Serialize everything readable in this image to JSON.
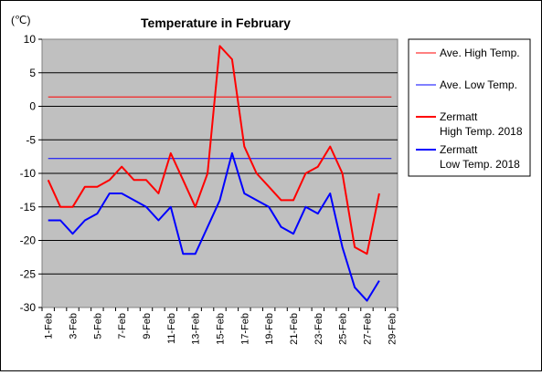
{
  "chart_data": {
    "type": "line",
    "title": "Temperature in February",
    "ylabel": "(℃)",
    "xlabel": "",
    "ylim": [
      -30,
      10
    ],
    "yticks": [
      "10",
      "5",
      "0",
      "-5",
      "-10",
      "-15",
      "-20",
      "-25",
      "-30"
    ],
    "categories": [
      "1-Feb",
      "2-Feb",
      "3-Feb",
      "4-Feb",
      "5-Feb",
      "6-Feb",
      "7-Feb",
      "8-Feb",
      "9-Feb",
      "10-Feb",
      "11-Feb",
      "12-Feb",
      "13-Feb",
      "14-Feb",
      "15-Feb",
      "16-Feb",
      "17-Feb",
      "18-Feb",
      "19-Feb",
      "20-Feb",
      "21-Feb",
      "22-Feb",
      "23-Feb",
      "24-Feb",
      "25-Feb",
      "26-Feb",
      "27-Feb",
      "28-Feb",
      "29-Feb"
    ],
    "xtick_labels": [
      "1-Feb",
      "3-Feb",
      "5-Feb",
      "7-Feb",
      "9-Feb",
      "11-Feb",
      "13-Feb",
      "15-Feb",
      "17-Feb",
      "19-Feb",
      "21-Feb",
      "23-Feb",
      "25-Feb",
      "27-Feb",
      "29-Feb"
    ],
    "grid": true,
    "background": "#c0c0c0",
    "legend_position": "right",
    "series": [
      {
        "name": "Ave. High Temp.",
        "color": "#ff0000",
        "thin": true,
        "legend_lines": [
          "Ave. High Temp."
        ],
        "values": [
          1.4,
          1.4,
          1.4,
          1.4,
          1.4,
          1.4,
          1.4,
          1.4,
          1.4,
          1.4,
          1.4,
          1.4,
          1.4,
          1.4,
          1.4,
          1.4,
          1.4,
          1.4,
          1.4,
          1.4,
          1.4,
          1.4,
          1.4,
          1.4,
          1.4,
          1.4,
          1.4,
          1.4,
          1.4
        ]
      },
      {
        "name": "Ave. Low Temp.",
        "color": "#0000ff",
        "thin": true,
        "legend_lines": [
          "Ave. Low Temp."
        ],
        "values": [
          -7.8,
          -7.8,
          -7.8,
          -7.8,
          -7.8,
          -7.8,
          -7.8,
          -7.8,
          -7.8,
          -7.8,
          -7.8,
          -7.8,
          -7.8,
          -7.8,
          -7.8,
          -7.8,
          -7.8,
          -7.8,
          -7.8,
          -7.8,
          -7.8,
          -7.8,
          -7.8,
          -7.8,
          -7.8,
          -7.8,
          -7.8,
          -7.8,
          -7.8
        ]
      },
      {
        "name": "Zermatt High Temp. 2018",
        "color": "#ff0000",
        "thin": false,
        "legend_lines": [
          "Zermatt",
          "High Temp. 2018"
        ],
        "values": [
          -11,
          -15,
          -15,
          -12,
          -12,
          -11,
          -9,
          -11,
          -11,
          -13,
          -7,
          -11,
          -15,
          -10,
          9,
          7,
          -6,
          -10,
          -12,
          -14,
          -14,
          -10,
          -9,
          -6,
          -10,
          -21,
          -22,
          -13,
          null
        ]
      },
      {
        "name": "Zermatt Low Temp. 2018",
        "color": "#0000ff",
        "thin": false,
        "legend_lines": [
          "Zermatt",
          "Low Temp. 2018"
        ],
        "values": [
          -17,
          -17,
          -19,
          -17,
          -16,
          -13,
          -13,
          -14,
          -15,
          -17,
          -15,
          -22,
          -22,
          -18,
          -14,
          -7,
          -13,
          -14,
          -15,
          -18,
          -19,
          -15,
          -16,
          -13,
          -21,
          -27,
          -29,
          -26,
          null
        ]
      }
    ]
  }
}
